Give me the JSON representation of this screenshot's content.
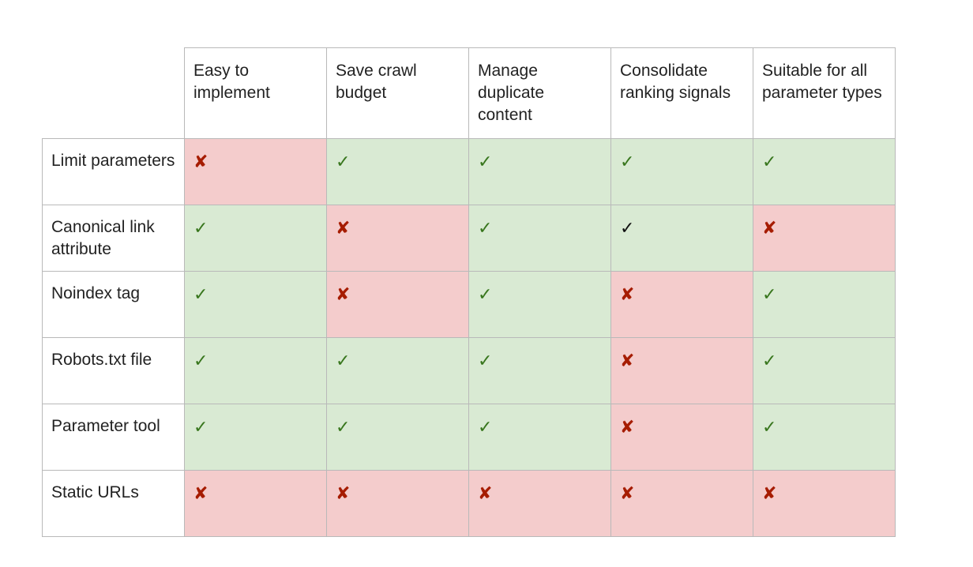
{
  "columns": [
    "Easy to implement",
    "Save crawl budget",
    "Manage duplicate content",
    "Consolidate ranking signals",
    "Suitable for all parameter types"
  ],
  "rows": [
    {
      "label": "Limit parameters",
      "cells": [
        {
          "value": "no",
          "glyph": "✘"
        },
        {
          "value": "yes",
          "glyph": "✓"
        },
        {
          "value": "yes",
          "glyph": "✓"
        },
        {
          "value": "yes",
          "glyph": "✓"
        },
        {
          "value": "yes",
          "glyph": "✓"
        }
      ]
    },
    {
      "label": "Canonical link attribute",
      "cells": [
        {
          "value": "yes",
          "glyph": "✓"
        },
        {
          "value": "no",
          "glyph": "✘"
        },
        {
          "value": "yes",
          "glyph": "✓"
        },
        {
          "value": "yes",
          "glyph": "✓",
          "dark": true
        },
        {
          "value": "no",
          "glyph": "✘"
        }
      ]
    },
    {
      "label": "Noindex tag",
      "cells": [
        {
          "value": "yes",
          "glyph": "✓"
        },
        {
          "value": "no",
          "glyph": "✘"
        },
        {
          "value": "yes",
          "glyph": "✓"
        },
        {
          "value": "no",
          "glyph": "✘"
        },
        {
          "value": "yes",
          "glyph": "✓"
        }
      ]
    },
    {
      "label": "Robots.txt file",
      "cells": [
        {
          "value": "yes",
          "glyph": "✓"
        },
        {
          "value": "yes",
          "glyph": "✓"
        },
        {
          "value": "yes",
          "glyph": "✓"
        },
        {
          "value": "no",
          "glyph": "✘"
        },
        {
          "value": "yes",
          "glyph": "✓"
        }
      ]
    },
    {
      "label": "Parameter tool",
      "cells": [
        {
          "value": "yes",
          "glyph": "✓"
        },
        {
          "value": "yes",
          "glyph": "✓"
        },
        {
          "value": "yes",
          "glyph": "✓"
        },
        {
          "value": "no",
          "glyph": "✘"
        },
        {
          "value": "yes",
          "glyph": "✓"
        }
      ]
    },
    {
      "label": "Static URLs",
      "cells": [
        {
          "value": "no",
          "glyph": "✘"
        },
        {
          "value": "no",
          "glyph": "✘"
        },
        {
          "value": "no",
          "glyph": "✘"
        },
        {
          "value": "no",
          "glyph": "✘"
        },
        {
          "value": "no",
          "glyph": "✘"
        }
      ]
    }
  ],
  "colors": {
    "yes_fill": "#d9ead3",
    "no_fill": "#f4cccc",
    "check_mark": "#38761d",
    "cross_mark": "#a61c00",
    "grid_line": "#b9b9b9"
  },
  "icons": {
    "yes": "check-icon",
    "no": "cross-icon"
  }
}
